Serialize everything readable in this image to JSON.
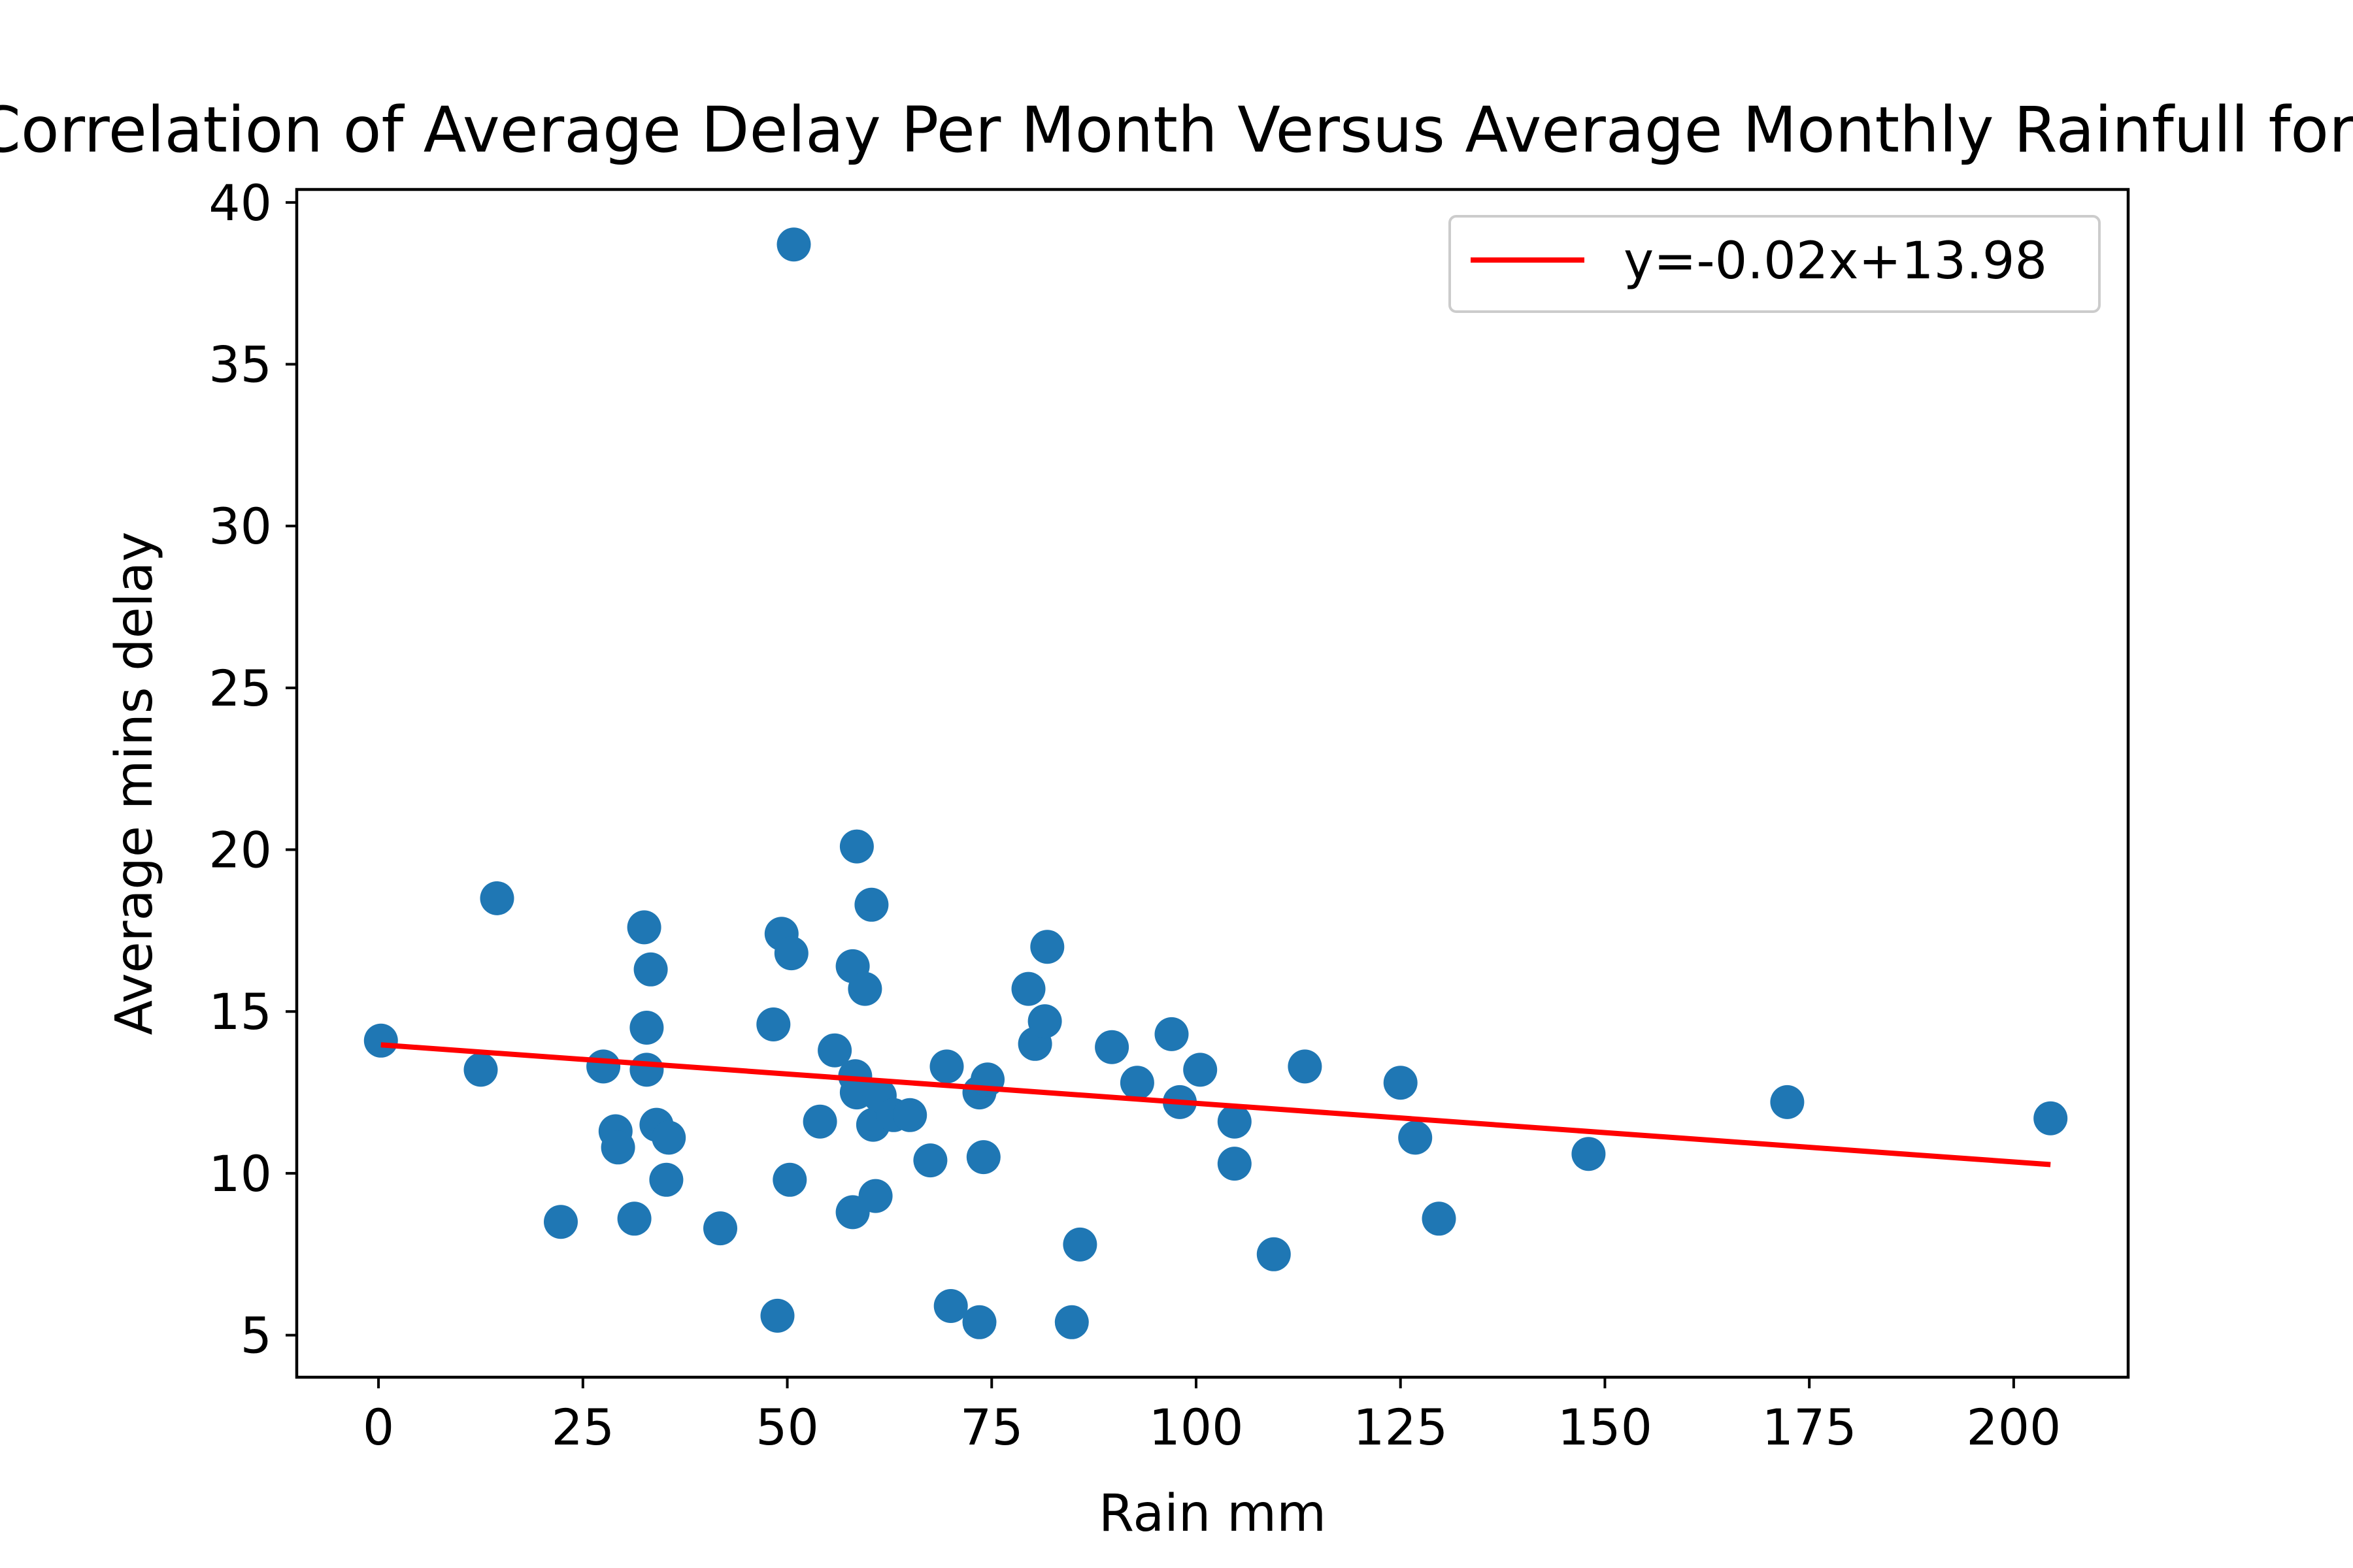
{
  "colors": {
    "points": "#1f77b4",
    "fit_line": "#ff0000",
    "axes": "#000000",
    "legend_border": "#cccccc"
  },
  "chart_data": {
    "type": "scatter",
    "title": "Correlation of Average Delay Per Month Versus Average Monthly Rainfull for all",
    "xlabel": "Rain mm",
    "ylabel": "Average mins delay",
    "xlim": [
      -10,
      214
    ],
    "ylim": [
      3.7,
      40.4
    ],
    "xticks": [
      0,
      25,
      50,
      75,
      100,
      125,
      150,
      175,
      200
    ],
    "yticks": [
      5,
      10,
      15,
      20,
      25,
      30,
      35,
      40
    ],
    "grid": false,
    "legend": {
      "position": "upper right",
      "entries": [
        "y=-0.02x+13.98"
      ]
    },
    "series": [
      {
        "type": "scatter",
        "x": [
          0.3,
          12.5,
          14.5,
          22.3,
          27.5,
          29,
          29.3,
          31.3,
          32.5,
          32.8,
          32.8,
          33.3,
          34,
          35.2,
          35.5,
          41.8,
          48.3,
          48.8,
          49.3,
          50.3,
          50.5,
          50.8,
          54,
          55.8,
          58,
          58,
          58.3,
          58.5,
          58.5,
          59.5,
          60.3,
          60.5,
          60.8,
          61.3,
          63,
          65,
          67.5,
          69.5,
          70,
          73.5,
          73.5,
          74,
          74.5,
          79.5,
          80.3,
          81.5,
          81.8,
          84.8,
          85.8,
          89.7,
          92.8,
          97,
          98,
          100.5,
          104.7,
          104.7,
          109.5,
          113.3,
          125,
          126.8,
          129.7,
          148,
          172.3,
          204.5
        ],
        "y": [
          14.1,
          13.2,
          18.5,
          8.5,
          13.3,
          11.3,
          10.8,
          8.6,
          17.6,
          14.5,
          13.2,
          16.3,
          11.5,
          9.8,
          11.1,
          8.3,
          14.6,
          5.6,
          17.4,
          9.8,
          16.8,
          38.7,
          11.6,
          13.8,
          16.4,
          8.8,
          13,
          20.1,
          12.5,
          15.7,
          18.3,
          11.5,
          9.3,
          12.4,
          11.8,
          11.8,
          10.4,
          13.3,
          5.9,
          5.4,
          12.5,
          10.5,
          12.9,
          15.7,
          14,
          14.7,
          17,
          5.4,
          7.8,
          13.9,
          12.8,
          14.3,
          12.2,
          13.2,
          11.6,
          10.3,
          7.5,
          13.3,
          12.8,
          11.1,
          8.6,
          10.6,
          12.2,
          11.7
        ]
      },
      {
        "type": "line",
        "name": "y=-0.02x+13.98",
        "x": [
          0.3,
          204.5
        ],
        "y": [
          13.97,
          10.27
        ]
      }
    ]
  }
}
